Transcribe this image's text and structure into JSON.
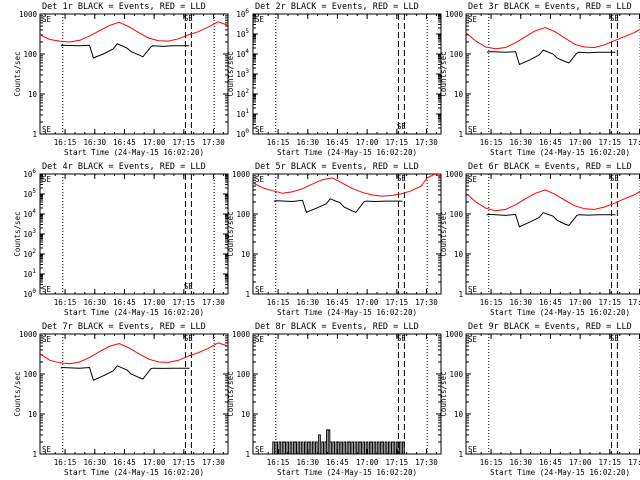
{
  "figure": {
    "x_tick_labels": [
      "16:15",
      "16:30",
      "16:45",
      "17:00",
      "17:15",
      "17:30"
    ],
    "x_label": "Start Time (24-May-15 16:02:20)",
    "y_label": "Counts/sec",
    "flag_glyphs": [
      "SE",
      "SE"
    ],
    "colors": {
      "events": "#000000",
      "lld": "#ff0000",
      "axes": "#000000",
      "background": "#ffffff"
    }
  },
  "chart_data": [
    {
      "type": "line",
      "title": "Det 1r BLACK = Events, RED = LLD",
      "xlabel": "Start Time (24-May-15 16:02:20)",
      "ylabel": "Counts/sec",
      "yscale": "log",
      "ylim": [
        1,
        1000
      ],
      "y_tick_labels": [
        "1",
        "10",
        "100",
        "1000"
      ],
      "x_units": "minutes after 16:02:20",
      "xlim": [
        0,
        95
      ],
      "series": [
        {
          "name": "Events",
          "color": "#000000",
          "x": [
            10.5,
            11,
            20,
            25,
            27,
            32,
            37,
            39,
            44,
            46,
            50,
            52,
            56,
            57,
            62,
            67,
            75.5
          ],
          "y": [
            160,
            165,
            160,
            165,
            80,
            100,
            135,
            180,
            140,
            115,
            95,
            85,
            150,
            160,
            155,
            160,
            160
          ]
        },
        {
          "name": "LLD",
          "color": "#ff0000",
          "x": [
            0,
            5,
            10,
            15,
            20,
            25,
            30,
            35,
            40,
            45,
            50,
            55,
            60,
            65,
            70,
            75,
            80,
            85,
            90,
            95
          ],
          "y": [
            300,
            230,
            210,
            200,
            220,
            280,
            380,
            520,
            620,
            480,
            340,
            250,
            215,
            210,
            240,
            300,
            360,
            470,
            640,
            520
          ]
        }
      ],
      "vlines_dotted": [
        11.5,
        88
      ],
      "vlines_dashed": [
        73.5,
        76.5
      ],
      "flag_label": "SE",
      "flag_x": 75,
      "flag_y": 800
    },
    {
      "type": "line",
      "title": "Det 2r BLACK = Events, RED = LLD",
      "xlabel": "Start Time (24-May-15 16:02:20)",
      "ylabel": "Counts/sec",
      "yscale": "log",
      "ylim": [
        1,
        1000000
      ],
      "y_tick_labels": [
        "10^0",
        "10^1",
        "10^2",
        "10^3",
        "10^4",
        "10^5",
        "10^6"
      ],
      "x_units": "minutes after 16:02:20",
      "xlim": [
        0,
        95
      ],
      "series": [],
      "vlines_dotted": [
        11.5,
        88
      ],
      "vlines_dashed": [
        73.5,
        76.5
      ],
      "flag_label": "SE",
      "flag_x": 75,
      "flag_y": 2.5
    },
    {
      "type": "line",
      "title": "Det 3r BLACK = Events, RED = LLD",
      "xlabel": "Start Time (24-May-15 16:02:20)",
      "ylabel": "Counts/sec",
      "yscale": "log",
      "ylim": [
        1,
        1000
      ],
      "y_tick_labels": [
        "1",
        "10",
        "100",
        "1000"
      ],
      "x_units": "minutes after 16:02:20",
      "xlim": [
        0,
        95
      ],
      "series": [
        {
          "name": "Events",
          "color": "#000000",
          "x": [
            10.5,
            12,
            20,
            25,
            27,
            32,
            37,
            39,
            44,
            46,
            50,
            52,
            56,
            57,
            62,
            67,
            75.5
          ],
          "y": [
            110,
            115,
            110,
            115,
            55,
            70,
            95,
            125,
            100,
            80,
            65,
            60,
            105,
            110,
            108,
            110,
            110
          ]
        },
        {
          "name": "LLD",
          "color": "#ff0000",
          "x": [
            0,
            5,
            10,
            15,
            20,
            25,
            30,
            35,
            40,
            45,
            50,
            55,
            60,
            65,
            70,
            75,
            80,
            85,
            90,
            95
          ],
          "y": [
            340,
            210,
            150,
            135,
            145,
            190,
            270,
            380,
            460,
            360,
            250,
            175,
            150,
            145,
            170,
            215,
            270,
            340,
            470,
            390
          ]
        }
      ],
      "vlines_dotted": [
        11.5,
        88
      ],
      "vlines_dashed": [
        73.5,
        76.5
      ],
      "flag_label": "SE",
      "flag_x": 75,
      "flag_y": 800
    },
    {
      "type": "line",
      "title": "Det 4r BLACK = Events, RED = LLD",
      "xlabel": "Start Time (24-May-15 16:02:20)",
      "ylabel": "Counts/sec",
      "yscale": "log",
      "ylim": [
        1,
        1000000
      ],
      "y_tick_labels": [
        "10^0",
        "10^1",
        "10^2",
        "10^3",
        "10^4",
        "10^5",
        "10^6"
      ],
      "x_units": "minutes after 16:02:20",
      "xlim": [
        0,
        95
      ],
      "series": [],
      "vlines_dotted": [
        11.5,
        88
      ],
      "vlines_dashed": [
        73.5,
        76.5
      ],
      "flag_label": "SE",
      "flag_x": 75,
      "flag_y": 2.5
    },
    {
      "type": "line",
      "title": "Det 5r BLACK = Events, RED = LLD",
      "xlabel": "Start Time (24-May-15 16:02:20)",
      "ylabel": "Counts/sec",
      "yscale": "log",
      "ylim": [
        1,
        1000
      ],
      "y_tick_labels": [
        "1",
        "10",
        "100",
        "1000"
      ],
      "x_units": "minutes after 16:02:20",
      "xlim": [
        0,
        95
      ],
      "series": [
        {
          "name": "Events",
          "color": "#000000",
          "x": [
            10.5,
            12,
            20,
            25,
            27,
            32,
            37,
            39,
            44,
            46,
            50,
            52,
            56,
            57,
            62,
            67,
            75.5
          ],
          "y": [
            210,
            215,
            205,
            220,
            110,
            140,
            180,
            240,
            190,
            150,
            120,
            110,
            200,
            210,
            205,
            210,
            210
          ]
        },
        {
          "name": "LLD",
          "color": "#ff0000",
          "x": [
            0,
            5,
            10,
            15,
            20,
            25,
            30,
            35,
            40,
            45,
            50,
            55,
            60,
            65,
            70,
            75,
            80,
            85,
            88,
            92,
            95
          ],
          "y": [
            600,
            450,
            380,
            330,
            360,
            430,
            560,
            720,
            800,
            600,
            440,
            350,
            300,
            280,
            290,
            320,
            380,
            500,
            800,
            1000,
            820
          ]
        }
      ],
      "vlines_dotted": [
        11.5,
        88
      ],
      "vlines_dashed": [
        73.5,
        76.5
      ],
      "flag_label": "SE",
      "flag_x": 75,
      "flag_y": 800
    },
    {
      "type": "line",
      "title": "Det 6r BLACK = Events, RED = LLD",
      "xlabel": "Start Time (24-May-15 16:02:20)",
      "ylabel": "Counts/sec",
      "yscale": "log",
      "ylim": [
        1,
        1000
      ],
      "y_tick_labels": [
        "1",
        "10",
        "100",
        "1000"
      ],
      "x_units": "minutes after 16:02:20",
      "xlim": [
        0,
        95
      ],
      "series": [
        {
          "name": "Events",
          "color": "#000000",
          "x": [
            10.5,
            12,
            20,
            25,
            27,
            32,
            37,
            39,
            44,
            46,
            50,
            52,
            56,
            57,
            62,
            67,
            75.5
          ],
          "y": [
            95,
            98,
            92,
            98,
            48,
            62,
            82,
            108,
            88,
            70,
            56,
            52,
            92,
            96,
            94,
            96,
            96
          ]
        },
        {
          "name": "LLD",
          "color": "#ff0000",
          "x": [
            0,
            5,
            10,
            15,
            20,
            25,
            30,
            35,
            40,
            45,
            50,
            55,
            60,
            65,
            70,
            75,
            80,
            85,
            90,
            95
          ],
          "y": [
            330,
            200,
            140,
            120,
            130,
            170,
            240,
            330,
            400,
            310,
            220,
            160,
            135,
            130,
            150,
            185,
            240,
            300,
            420,
            350
          ]
        }
      ],
      "vlines_dotted": [
        11.5,
        88
      ],
      "vlines_dashed": [
        73.5,
        76.5
      ],
      "flag_label": "SE",
      "flag_x": 75,
      "flag_y": 800
    },
    {
      "type": "line",
      "title": "Det 7r BLACK = Events, RED = LLD",
      "xlabel": "Start Time (24-May-15 16:02:20)",
      "ylabel": "Counts/sec",
      "yscale": "log",
      "ylim": [
        1,
        1000
      ],
      "y_tick_labels": [
        "1",
        "10",
        "100",
        "1000"
      ],
      "x_units": "minutes after 16:02:20",
      "xlim": [
        0,
        95
      ],
      "series": [
        {
          "name": "Events",
          "color": "#000000",
          "x": [
            10.5,
            11,
            20,
            25,
            27,
            32,
            37,
            39,
            44,
            46,
            50,
            52,
            56,
            57,
            62,
            67,
            75.5
          ],
          "y": [
            140,
            145,
            140,
            145,
            70,
            90,
            120,
            160,
            125,
            100,
            82,
            75,
            135,
            140,
            138,
            140,
            140
          ]
        },
        {
          "name": "LLD",
          "color": "#ff0000",
          "x": [
            0,
            5,
            10,
            15,
            20,
            25,
            30,
            35,
            40,
            45,
            50,
            55,
            60,
            65,
            70,
            75,
            80,
            85,
            90,
            95
          ],
          "y": [
            320,
            220,
            190,
            180,
            200,
            260,
            360,
            490,
            580,
            450,
            320,
            235,
            200,
            195,
            220,
            280,
            340,
            440,
            600,
            500
          ]
        }
      ],
      "vlines_dotted": [
        11.5,
        88
      ],
      "vlines_dashed": [
        73.5,
        76.5
      ],
      "flag_label": "SE",
      "flag_x": 75,
      "flag_y": 800
    },
    {
      "type": "line",
      "title": "Det 8r BLACK = Events, RED = LLD",
      "xlabel": "Start Time (24-May-15 16:02:20)",
      "ylabel": "Counts/sec",
      "yscale": "log",
      "ylim": [
        1,
        1000
      ],
      "y_tick_labels": [
        "1",
        "10",
        "100",
        "1000"
      ],
      "x_units": "minutes after 16:02:20",
      "xlim": [
        0,
        95
      ],
      "series": [
        {
          "name": "Events",
          "color": "#000000",
          "style": "step",
          "x": [
            10,
            10.8,
            11.6,
            12.4,
            13.2,
            14,
            14.8,
            15.6,
            16.4,
            17.2,
            18,
            18.8,
            19.6,
            20.4,
            21.2,
            22,
            22.8,
            23.6,
            24.4,
            25.2,
            26,
            26.8,
            27.6,
            28.4,
            29.2,
            30,
            30.8,
            31.6,
            32.4,
            33.2,
            34,
            34.8,
            35.6,
            36.4,
            37.2,
            38,
            38.8,
            39.6,
            40.4,
            41.2,
            42,
            42.8,
            43.6,
            44.4,
            45.2,
            46,
            46.8,
            47.6,
            48.4,
            49.2,
            50,
            50.8,
            51.6,
            52.4,
            53.2,
            54,
            54.8,
            55.6,
            56.4,
            57.2,
            58,
            58.8,
            59.6,
            60.4,
            61.2,
            62,
            62.8,
            63.6,
            64.4,
            65.2,
            66,
            66.8,
            67.6,
            68.4,
            69.2,
            70,
            70.8,
            71.6,
            72.4,
            73.2,
            74,
            74.8,
            75.6,
            76.4
          ],
          "y": [
            2,
            1,
            2,
            1,
            2,
            1,
            2,
            2,
            1,
            2,
            1,
            2,
            1,
            2,
            2,
            1,
            2,
            1,
            2,
            1,
            2,
            1,
            2,
            2,
            1,
            2,
            1,
            2,
            1,
            3,
            1,
            2,
            1,
            2,
            4,
            4,
            2,
            1,
            2,
            1,
            2,
            2,
            1,
            2,
            1,
            2,
            1,
            2,
            2,
            1,
            2,
            1,
            2,
            1,
            2,
            2,
            1,
            2,
            1,
            2,
            1,
            2,
            2,
            1,
            2,
            1,
            2,
            1,
            2,
            2,
            1,
            2,
            1,
            2,
            1,
            2,
            2,
            1,
            2,
            1,
            2,
            1,
            2,
            1
          ]
        }
      ],
      "vlines_dotted": [
        11.5,
        88
      ],
      "vlines_dashed": [
        73.5,
        76.5
      ],
      "flag_label": "SE",
      "flag_x": 75,
      "flag_y": 800
    },
    {
      "type": "line",
      "title": "Det 9r BLACK = Events, RED = LLD",
      "xlabel": "Start Time (24-May-15 16:02:20)",
      "ylabel": "Counts/sec",
      "yscale": "log",
      "ylim": [
        1,
        1000
      ],
      "y_tick_labels": [
        "1",
        "10",
        "100",
        "1000"
      ],
      "x_units": "minutes after 16:02:20",
      "xlim": [
        0,
        95
      ],
      "series": [],
      "vlines_dotted": [
        11.5,
        88
      ],
      "vlines_dashed": [
        73.5,
        76.5
      ],
      "flag_label": "SE",
      "flag_x": 75,
      "flag_y": 800
    }
  ]
}
